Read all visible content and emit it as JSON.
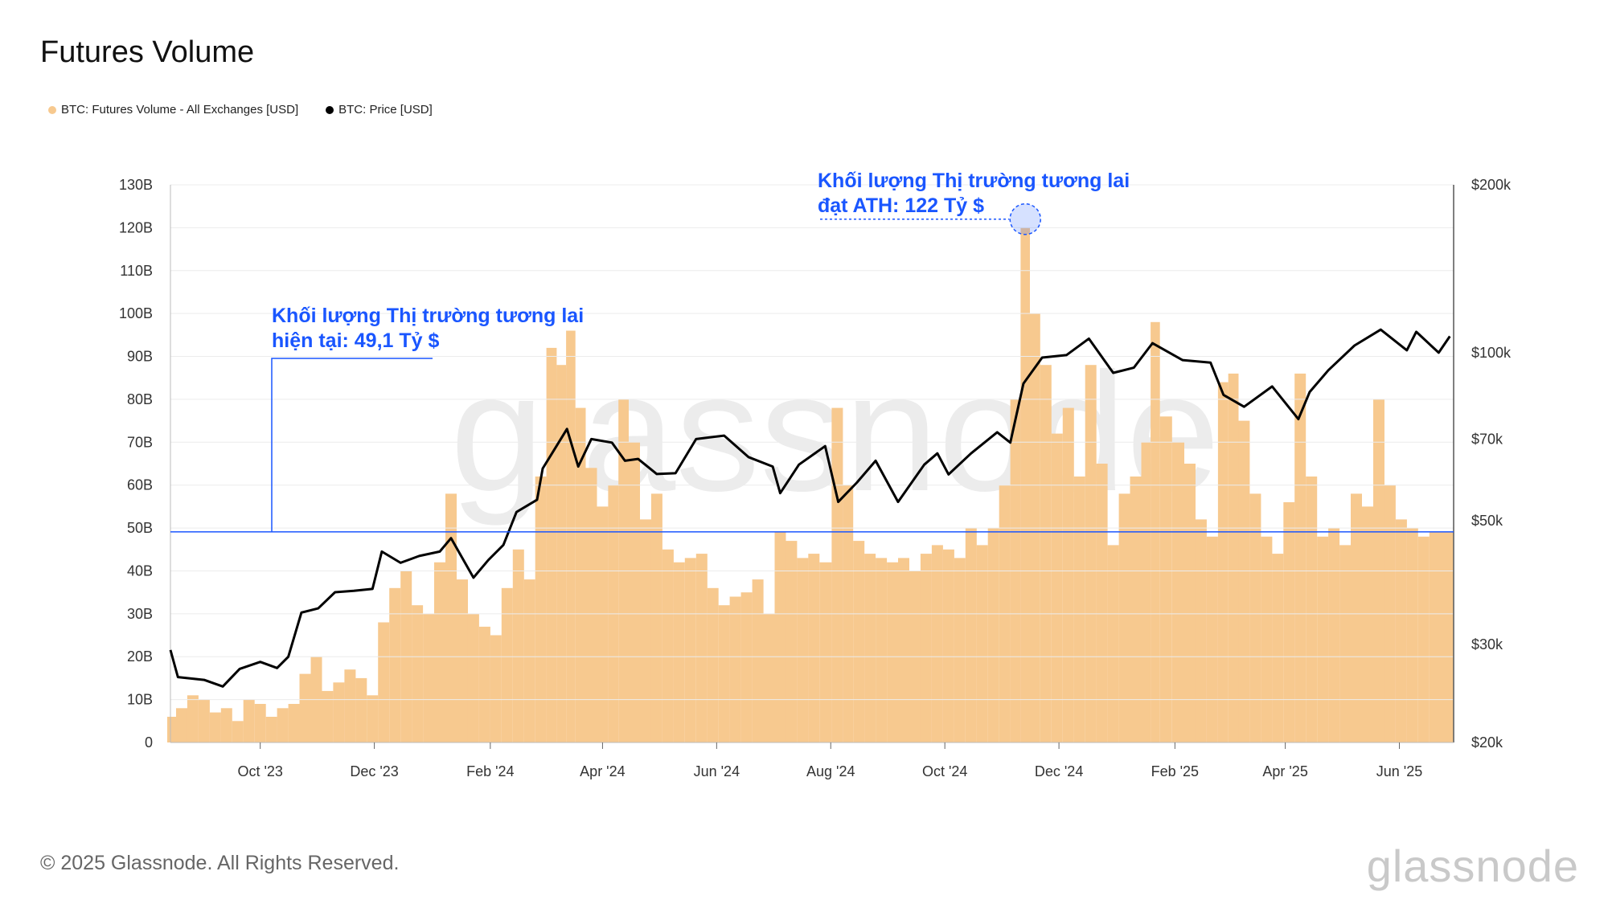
{
  "header": {
    "title": "Futures Volume"
  },
  "legend": [
    {
      "label": "BTC: Futures Volume - All Exchanges [USD]",
      "color": "#f7c98f"
    },
    {
      "label": "BTC: Price [USD]",
      "color": "#000000"
    }
  ],
  "footer": {
    "copyright": "© 2025 Glassnode. All Rights Reserved.",
    "brand": "glassnode"
  },
  "chart_data": {
    "type": "bar+line",
    "title": "Futures Volume",
    "x_start": "2023-08-14",
    "x_end": "2025-06-30",
    "x_tick_labels": [
      {
        "label": "Oct '23",
        "date": "2023-10-01"
      },
      {
        "label": "Dec '23",
        "date": "2023-12-01"
      },
      {
        "label": "Feb '24",
        "date": "2024-02-01"
      },
      {
        "label": "Apr '24",
        "date": "2024-04-01"
      },
      {
        "label": "Jun '24",
        "date": "2024-06-01"
      },
      {
        "label": "Aug '24",
        "date": "2024-08-01"
      },
      {
        "label": "Oct '24",
        "date": "2024-10-01"
      },
      {
        "label": "Dec '24",
        "date": "2024-12-01"
      },
      {
        "label": "Feb '25",
        "date": "2025-02-01"
      },
      {
        "label": "Apr '25",
        "date": "2025-04-01"
      },
      {
        "label": "Jun '25",
        "date": "2025-06-01"
      }
    ],
    "y_left": {
      "range": [
        0,
        130
      ],
      "unit": "B",
      "ticks": [
        "0",
        "10B",
        "20B",
        "30B",
        "40B",
        "50B",
        "60B",
        "70B",
        "80B",
        "90B",
        "100B",
        "110B",
        "120B",
        "130B"
      ]
    },
    "y_right": {
      "scale": "log",
      "range": [
        20000,
        200000
      ],
      "ticks": [
        {
          "label": "$20k",
          "value": 20000
        },
        {
          "label": "$30k",
          "value": 30000
        },
        {
          "label": "$50k",
          "value": 50000
        },
        {
          "label": "$70k",
          "value": 70000
        },
        {
          "label": "$100k",
          "value": 100000
        },
        {
          "label": "$200k",
          "value": 200000
        }
      ]
    },
    "series": [
      {
        "name": "BTC: Futures Volume - All Exchanges [USD]",
        "type": "bar",
        "unit": "B USD",
        "color": "#f7c98f",
        "points": [
          [
            "2023-08-14",
            6
          ],
          [
            "2023-08-20",
            8
          ],
          [
            "2023-08-26",
            11
          ],
          [
            "2023-09-01",
            10
          ],
          [
            "2023-09-07",
            7
          ],
          [
            "2023-09-13",
            8
          ],
          [
            "2023-09-19",
            5
          ],
          [
            "2023-09-25",
            10
          ],
          [
            "2023-10-01",
            9
          ],
          [
            "2023-10-07",
            6
          ],
          [
            "2023-10-13",
            8
          ],
          [
            "2023-10-19",
            9
          ],
          [
            "2023-10-25",
            16
          ],
          [
            "2023-10-31",
            20
          ],
          [
            "2023-11-06",
            12
          ],
          [
            "2023-11-12",
            14
          ],
          [
            "2023-11-18",
            17
          ],
          [
            "2023-11-24",
            15
          ],
          [
            "2023-11-30",
            11
          ],
          [
            "2023-12-06",
            28
          ],
          [
            "2023-12-12",
            36
          ],
          [
            "2023-12-18",
            40
          ],
          [
            "2023-12-24",
            32
          ],
          [
            "2023-12-30",
            30
          ],
          [
            "2024-01-05",
            42
          ],
          [
            "2024-01-11",
            58
          ],
          [
            "2024-01-17",
            38
          ],
          [
            "2024-01-23",
            30
          ],
          [
            "2024-01-29",
            27
          ],
          [
            "2024-02-04",
            25
          ],
          [
            "2024-02-10",
            36
          ],
          [
            "2024-02-16",
            45
          ],
          [
            "2024-02-22",
            38
          ],
          [
            "2024-02-28",
            62
          ],
          [
            "2024-03-05",
            92
          ],
          [
            "2024-03-10",
            88
          ],
          [
            "2024-03-15",
            96
          ],
          [
            "2024-03-20",
            78
          ],
          [
            "2024-03-26",
            64
          ],
          [
            "2024-04-01",
            55
          ],
          [
            "2024-04-07",
            60
          ],
          [
            "2024-04-12",
            80
          ],
          [
            "2024-04-18",
            70
          ],
          [
            "2024-04-24",
            52
          ],
          [
            "2024-04-30",
            58
          ],
          [
            "2024-05-06",
            45
          ],
          [
            "2024-05-12",
            42
          ],
          [
            "2024-05-18",
            43
          ],
          [
            "2024-05-24",
            44
          ],
          [
            "2024-05-30",
            36
          ],
          [
            "2024-06-05",
            32
          ],
          [
            "2024-06-11",
            34
          ],
          [
            "2024-06-17",
            35
          ],
          [
            "2024-06-23",
            38
          ],
          [
            "2024-06-29",
            30
          ],
          [
            "2024-07-05",
            49
          ],
          [
            "2024-07-11",
            47
          ],
          [
            "2024-07-17",
            43
          ],
          [
            "2024-07-23",
            44
          ],
          [
            "2024-07-29",
            42
          ],
          [
            "2024-08-05",
            78
          ],
          [
            "2024-08-10",
            60
          ],
          [
            "2024-08-16",
            47
          ],
          [
            "2024-08-22",
            44
          ],
          [
            "2024-08-28",
            43
          ],
          [
            "2024-09-03",
            42
          ],
          [
            "2024-09-09",
            43
          ],
          [
            "2024-09-15",
            40
          ],
          [
            "2024-09-21",
            44
          ],
          [
            "2024-09-27",
            46
          ],
          [
            "2024-10-03",
            45
          ],
          [
            "2024-10-09",
            43
          ],
          [
            "2024-10-15",
            50
          ],
          [
            "2024-10-21",
            46
          ],
          [
            "2024-10-27",
            50
          ],
          [
            "2024-11-02",
            60
          ],
          [
            "2024-11-08",
            80
          ],
          [
            "2024-11-13",
            120
          ],
          [
            "2024-11-18",
            100
          ],
          [
            "2024-11-24",
            88
          ],
          [
            "2024-11-30",
            72
          ],
          [
            "2024-12-06",
            78
          ],
          [
            "2024-12-12",
            62
          ],
          [
            "2024-12-18",
            88
          ],
          [
            "2024-12-24",
            65
          ],
          [
            "2024-12-30",
            46
          ],
          [
            "2025-01-05",
            58
          ],
          [
            "2025-01-11",
            62
          ],
          [
            "2025-01-17",
            70
          ],
          [
            "2025-01-21",
            98
          ],
          [
            "2025-01-27",
            76
          ],
          [
            "2025-02-03",
            70
          ],
          [
            "2025-02-09",
            65
          ],
          [
            "2025-02-15",
            52
          ],
          [
            "2025-02-21",
            48
          ],
          [
            "2025-02-27",
            84
          ],
          [
            "2025-03-04",
            86
          ],
          [
            "2025-03-10",
            75
          ],
          [
            "2025-03-16",
            58
          ],
          [
            "2025-03-22",
            48
          ],
          [
            "2025-03-28",
            44
          ],
          [
            "2025-04-03",
            56
          ],
          [
            "2025-04-09",
            86
          ],
          [
            "2025-04-15",
            62
          ],
          [
            "2025-04-21",
            48
          ],
          [
            "2025-04-27",
            50
          ],
          [
            "2025-05-03",
            46
          ],
          [
            "2025-05-09",
            58
          ],
          [
            "2025-05-15",
            55
          ],
          [
            "2025-05-21",
            80
          ],
          [
            "2025-05-27",
            60
          ],
          [
            "2025-06-02",
            52
          ],
          [
            "2025-06-08",
            50
          ],
          [
            "2025-06-14",
            48
          ],
          [
            "2025-06-20",
            49
          ],
          [
            "2025-06-28",
            49.1
          ]
        ]
      },
      {
        "name": "BTC: Price [USD]",
        "type": "line",
        "axis": "right",
        "color": "#000000",
        "points": [
          [
            "2023-08-14",
            29300
          ],
          [
            "2023-08-18",
            26200
          ],
          [
            "2023-09-01",
            25900
          ],
          [
            "2023-09-11",
            25200
          ],
          [
            "2023-09-20",
            27100
          ],
          [
            "2023-10-01",
            27900
          ],
          [
            "2023-10-10",
            27200
          ],
          [
            "2023-10-16",
            28500
          ],
          [
            "2023-10-23",
            34200
          ],
          [
            "2023-11-01",
            34800
          ],
          [
            "2023-11-10",
            37200
          ],
          [
            "2023-11-20",
            37400
          ],
          [
            "2023-11-30",
            37700
          ],
          [
            "2023-12-05",
            44000
          ],
          [
            "2023-12-15",
            42000
          ],
          [
            "2023-12-25",
            43200
          ],
          [
            "2024-01-05",
            44000
          ],
          [
            "2024-01-11",
            46500
          ],
          [
            "2024-01-23",
            39500
          ],
          [
            "2024-01-31",
            42500
          ],
          [
            "2024-02-08",
            45200
          ],
          [
            "2024-02-15",
            51800
          ],
          [
            "2024-02-26",
            54500
          ],
          [
            "2024-02-29",
            62000
          ],
          [
            "2024-03-05",
            66000
          ],
          [
            "2024-03-13",
            73000
          ],
          [
            "2024-03-19",
            62500
          ],
          [
            "2024-03-26",
            70000
          ],
          [
            "2024-04-06",
            69000
          ],
          [
            "2024-04-13",
            64000
          ],
          [
            "2024-04-20",
            64500
          ],
          [
            "2024-04-30",
            60600
          ],
          [
            "2024-05-10",
            60800
          ],
          [
            "2024-05-21",
            70000
          ],
          [
            "2024-06-05",
            71000
          ],
          [
            "2024-06-18",
            65000
          ],
          [
            "2024-07-01",
            62500
          ],
          [
            "2024-07-05",
            56000
          ],
          [
            "2024-07-15",
            63000
          ],
          [
            "2024-07-29",
            68000
          ],
          [
            "2024-08-05",
            54000
          ],
          [
            "2024-08-15",
            58500
          ],
          [
            "2024-08-25",
            64000
          ],
          [
            "2024-09-06",
            54000
          ],
          [
            "2024-09-20",
            63000
          ],
          [
            "2024-09-27",
            66000
          ],
          [
            "2024-10-03",
            60500
          ],
          [
            "2024-10-15",
            66000
          ],
          [
            "2024-10-29",
            72000
          ],
          [
            "2024-11-05",
            69000
          ],
          [
            "2024-11-12",
            88000
          ],
          [
            "2024-11-22",
            98000
          ],
          [
            "2024-12-05",
            99000
          ],
          [
            "2024-12-17",
            106000
          ],
          [
            "2024-12-30",
            92000
          ],
          [
            "2025-01-10",
            94000
          ],
          [
            "2025-01-20",
            104000
          ],
          [
            "2025-02-05",
            97000
          ],
          [
            "2025-02-20",
            96000
          ],
          [
            "2025-02-27",
            84000
          ],
          [
            "2025-03-10",
            80000
          ],
          [
            "2025-03-25",
            87000
          ],
          [
            "2025-04-08",
            76000
          ],
          [
            "2025-04-14",
            85000
          ],
          [
            "2025-04-24",
            93000
          ],
          [
            "2025-05-08",
            103000
          ],
          [
            "2025-05-22",
            110000
          ],
          [
            "2025-06-05",
            101000
          ],
          [
            "2025-06-10",
            109000
          ],
          [
            "2025-06-22",
            100000
          ],
          [
            "2025-06-28",
            107000
          ]
        ]
      }
    ],
    "reference_line": {
      "value": 49.1,
      "axis": "left",
      "color": "#1a56ff"
    },
    "annotations": [
      {
        "lines": [
          "Khối lượng Thị trường tương lai",
          "hiện tại: 49,1 Tỷ $"
        ],
        "target_value": 49.1
      },
      {
        "lines": [
          "Khối lượng Thị trường tương lai",
          "đạt ATH: 122 Tỷ $"
        ],
        "target_date": "2024-11-13",
        "target_value": 122
      }
    ],
    "watermark": "glassnode"
  }
}
